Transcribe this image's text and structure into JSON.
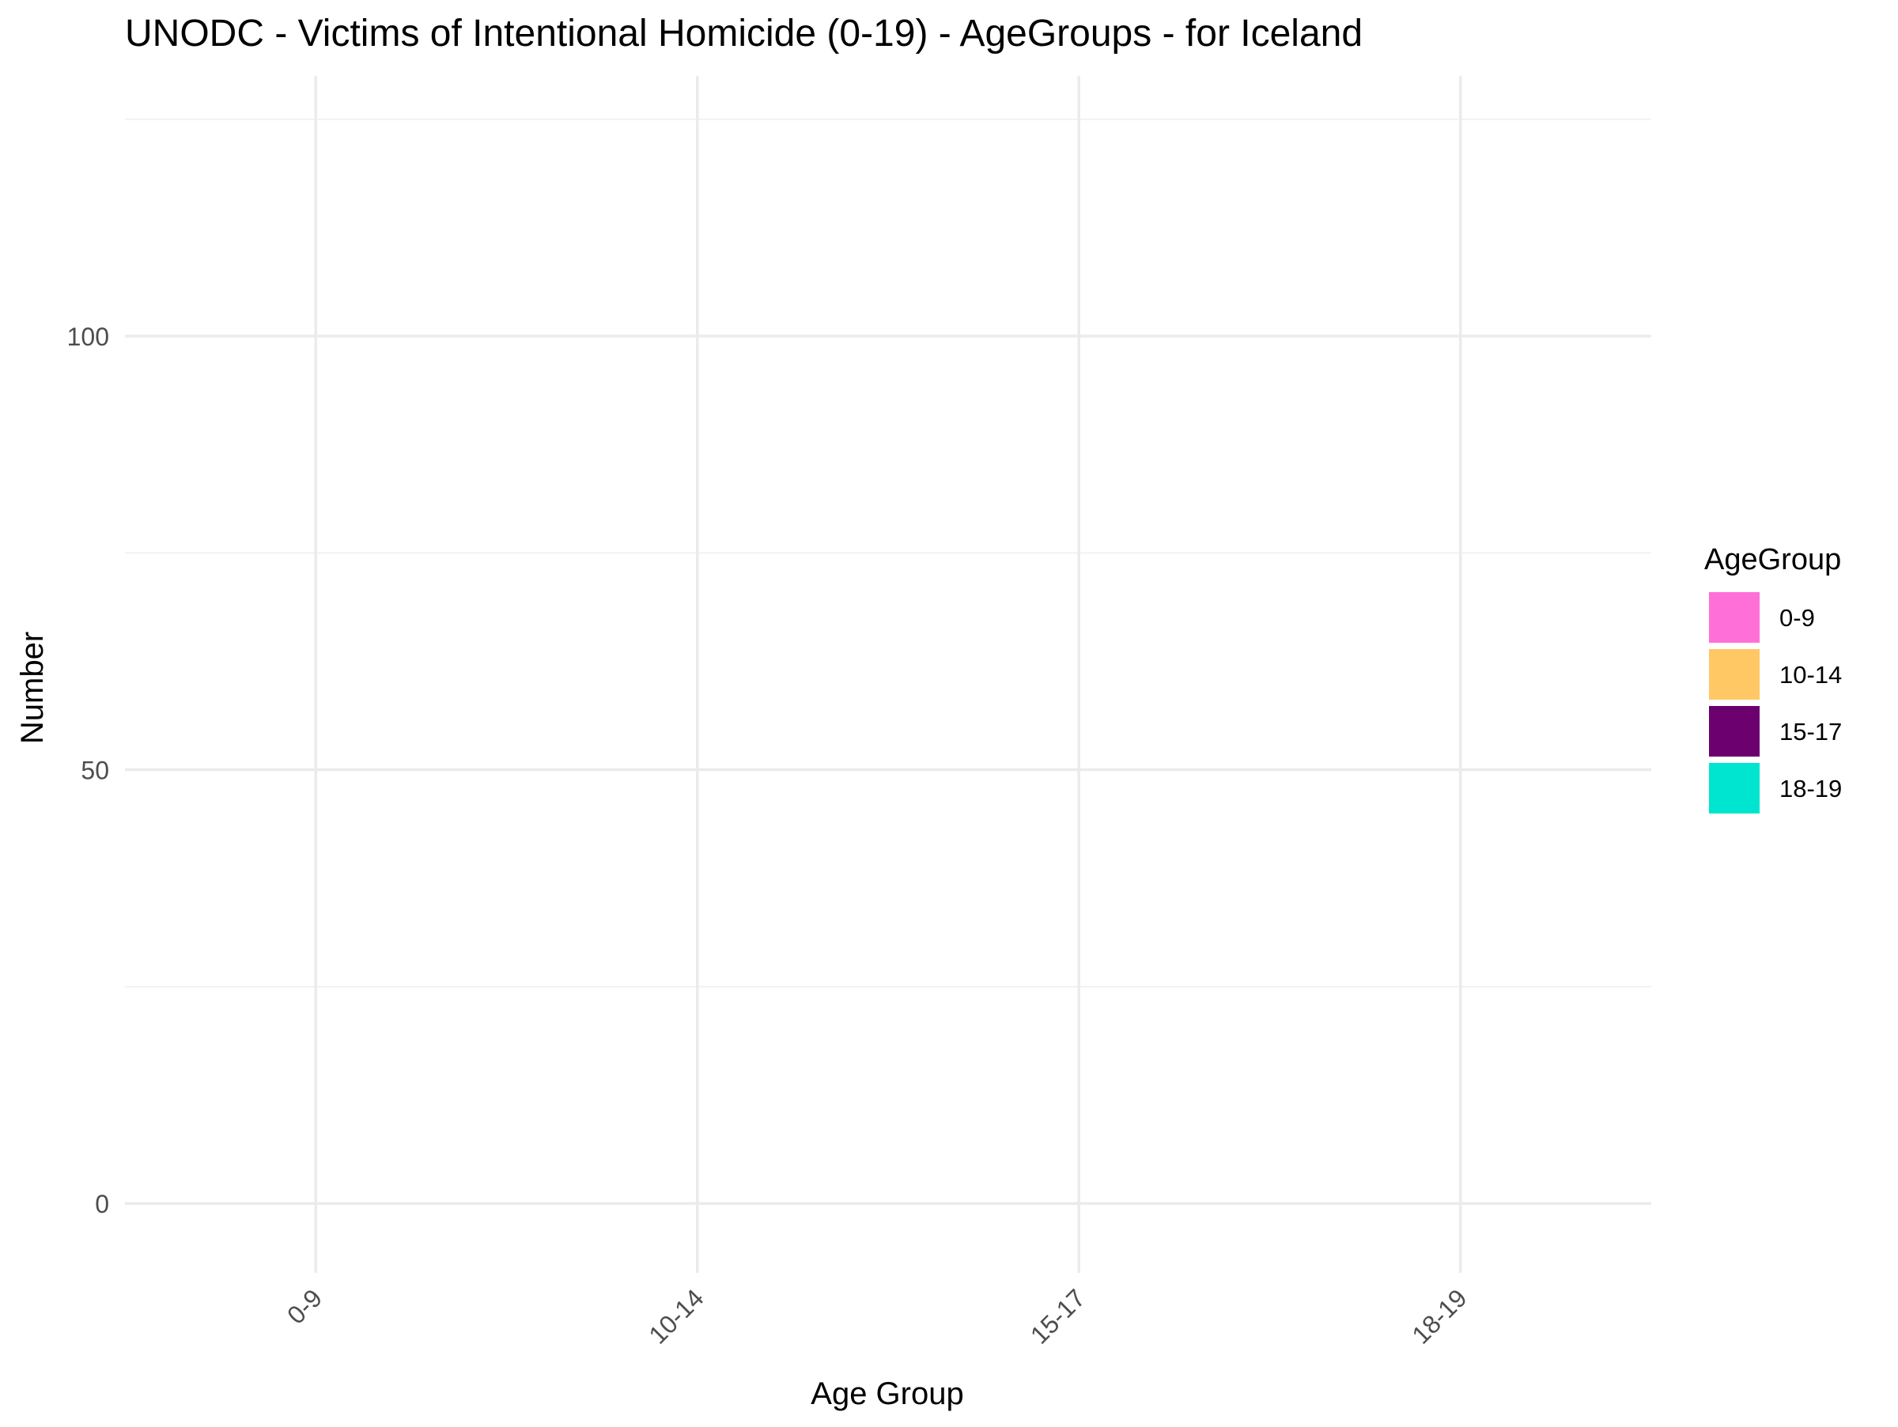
{
  "chart_data": {
    "type": "bar",
    "title": "UNODC - Victims of Intentional Homicide (0-19) - AgeGroups - for Iceland",
    "xlabel": "Age Group",
    "ylabel": "Number",
    "categories": [
      "0-9",
      "10-14",
      "15-17",
      "18-19"
    ],
    "values": [
      0,
      0,
      0,
      0
    ],
    "ylim": [
      -8,
      130
    ],
    "yticks": [
      0,
      50,
      100
    ],
    "ytick_labels": [
      "0",
      "50",
      "100"
    ],
    "y_minor_gridlines": [
      25,
      75,
      125
    ],
    "grid": true,
    "legend": {
      "title": "AgeGroup",
      "position": "right",
      "items": [
        {
          "label": "0-9",
          "color": "#FF6FD8"
        },
        {
          "label": "10-14",
          "color": "#FFC864"
        },
        {
          "label": "15-17",
          "color": "#6B006E"
        },
        {
          "label": "18-19",
          "color": "#00E5D0"
        }
      ]
    },
    "colors": {
      "grid_major": "#EBEBEB",
      "grid_minor": "#F2F2F2",
      "axis_text": "#4D4D4D",
      "text": "#000000"
    }
  }
}
